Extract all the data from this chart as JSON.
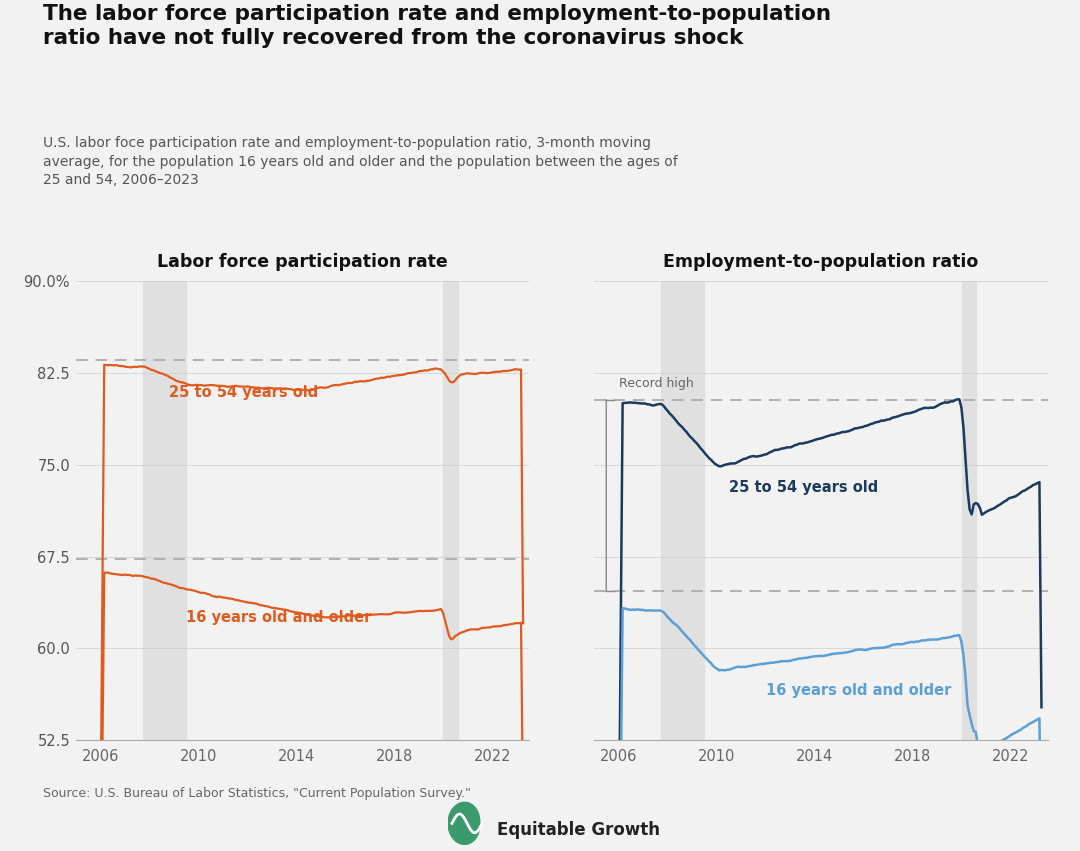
{
  "title": "The labor force participation rate and employment-to-population\nratio have not fully recovered from the coronavirus shock",
  "subtitle": "U.S. labor foce participation rate and employment-to-population ratio, 3-month moving\naverage, for the population 16 years old and older and the population between the ages of\n25 and 54, 2006–2023",
  "source": "Source: U.S. Bureau of Labor Statistics, \"Current Population Survey.\"",
  "left_title": "Labor force participation rate",
  "right_title": "Employment-to-population ratio",
  "bg_color": "#f2f2f2",
  "recession_color": "#e0e0e0",
  "orange_color": "#e05a1e",
  "dark_blue_color": "#1b3a5c",
  "light_blue_color": "#5b9fd4",
  "record_high_label": "Record high",
  "label_25_54": "25 to 54 years old",
  "label_16plus": "16 years old and older",
  "recession1_start": 2007.75,
  "recession1_end": 2009.5,
  "recession2_start": 2020.0,
  "recession2_end": 2020.58,
  "lfpr_25_54_record": 83.5,
  "lfpr_16plus_record": 67.3,
  "epop_25_54_record": 80.3,
  "epop_16plus_record": 64.7,
  "ylim": [
    52.5,
    90.0
  ],
  "left_yticks": [
    52.5,
    60.0,
    67.5,
    75.0,
    82.5,
    90.0
  ],
  "right_yticks": [
    52.5,
    60.0,
    67.5,
    75.0,
    82.5,
    90.0
  ],
  "xlim": [
    2005.0,
    2023.5
  ],
  "xticks": [
    2006,
    2010,
    2014,
    2018,
    2022
  ]
}
